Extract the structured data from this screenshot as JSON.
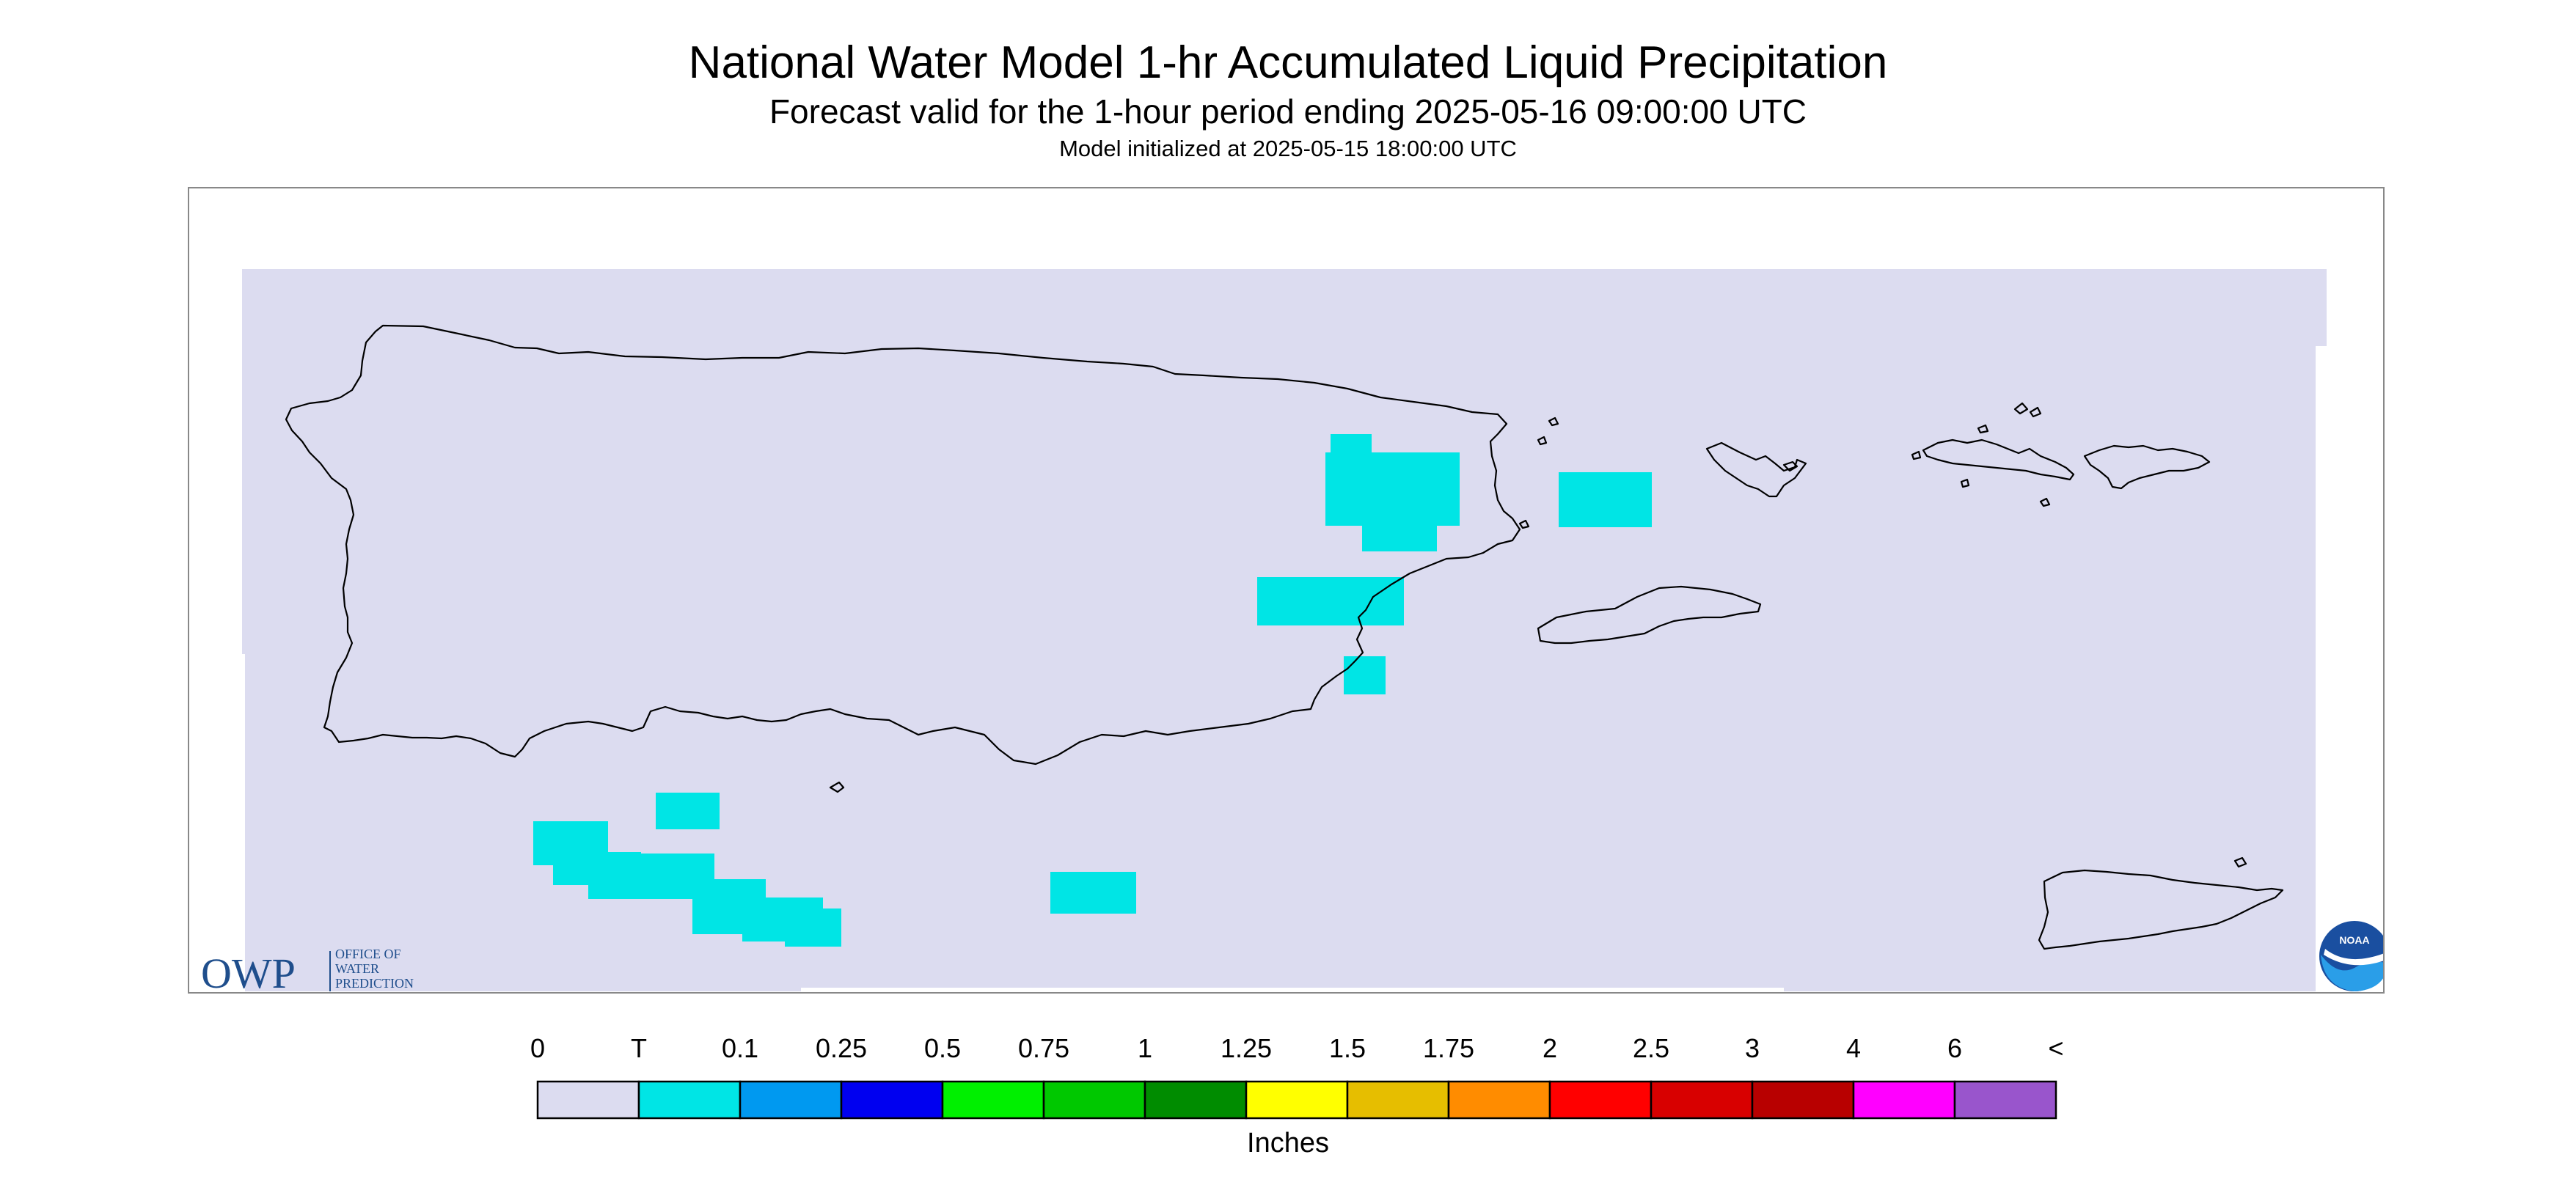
{
  "header": {
    "title": "National Water Model 1-hr Accumulated Liquid Precipitation",
    "subtitle": "Forecast valid for the 1-hour period ending 2025-05-16 09:00:00 UTC",
    "init_line": "Model initialized at 2025-05-15 18:00:00 UTC"
  },
  "logos": {
    "owp_big": "OWP",
    "owp_line1": "OFFICE OF",
    "owp_line2": "WATER",
    "owp_line3": "PREDICTION",
    "noaa": "NOAA"
  },
  "legend": {
    "title": "Inches",
    "labels": [
      "0",
      "T",
      "0.1",
      "0.25",
      "0.5",
      "0.75",
      "1",
      "1.25",
      "1.5",
      "1.75",
      "2",
      "2.5",
      "3",
      "4",
      "6",
      "<"
    ],
    "colors": [
      "#dcdcf0",
      "#00e5e5",
      "#0099f0",
      "#0000f0",
      "#00f000",
      "#00c800",
      "#008c00",
      "#ffff00",
      "#e6be00",
      "#ff8c00",
      "#ff0000",
      "#d80000",
      "#b80000",
      "#ff00ff",
      "#9955cc"
    ]
  },
  "colors": {
    "no_precip": "#dcdcf0",
    "trace": "#00e5e5",
    "coast": "#000000"
  }
}
